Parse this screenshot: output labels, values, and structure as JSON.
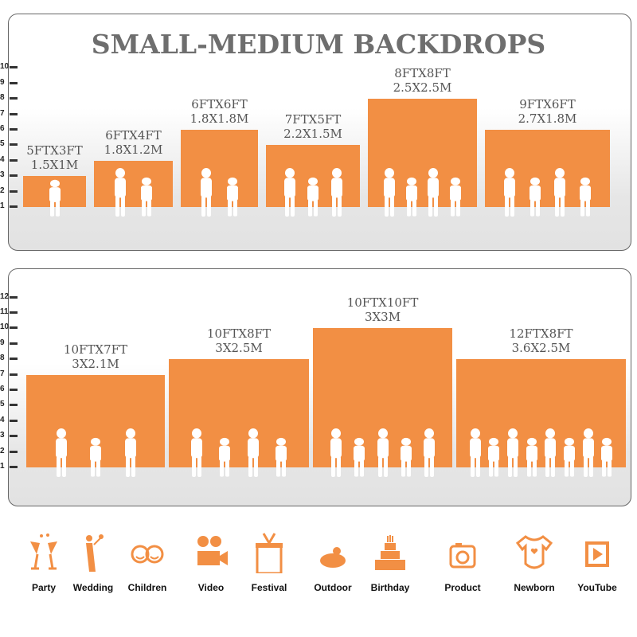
{
  "title": "SMALL-MEDIUM BACKDROPS",
  "accent_color": "#f28f44",
  "panel1": {
    "axis_ticks": [
      "1",
      "2",
      "3",
      "4",
      "5",
      "6",
      "7",
      "8",
      "9",
      "10"
    ],
    "items": [
      {
        "ft": "5FTX3FT",
        "m": "1.5X1M",
        "height_ft": 3,
        "people": 1
      },
      {
        "ft": "6FTX4FT",
        "m": "1.8X1.2M",
        "height_ft": 4,
        "people": 2
      },
      {
        "ft": "6FTX6FT",
        "m": "1.8X1.8M",
        "height_ft": 6,
        "people": 2
      },
      {
        "ft": "7FTX5FT",
        "m": "2.2X1.5M",
        "height_ft": 5,
        "people": 3
      },
      {
        "ft": "8FTX8FT",
        "m": "2.5X2.5M",
        "height_ft": 8,
        "people": 4
      },
      {
        "ft": "9FTX6FT",
        "m": "2.7X1.8M",
        "height_ft": 6,
        "people": 4
      }
    ]
  },
  "panel2": {
    "axis_ticks": [
      "1",
      "2",
      "3",
      "4",
      "5",
      "6",
      "7",
      "8",
      "9",
      "10",
      "11",
      "12"
    ],
    "items": [
      {
        "ft": "10FTX7FT",
        "m": "3X2.1M",
        "height_ft": 7,
        "people": 3
      },
      {
        "ft": "10FTX8FT",
        "m": "3X2.5M",
        "height_ft": 8,
        "people": 4
      },
      {
        "ft": "10FTX10FT",
        "m": "3X3M",
        "height_ft": 10,
        "people": 5
      },
      {
        "ft": "12FTX8FT",
        "m": "3.6X2.5M",
        "height_ft": 8,
        "people": 8
      }
    ]
  },
  "uses": [
    {
      "label": "Party",
      "icon": "champagne-glasses-icon"
    },
    {
      "label": "Wedding",
      "icon": "wedding-couple-icon"
    },
    {
      "label": "Children",
      "icon": "children-faces-icon"
    },
    {
      "label": "Video",
      "icon": "video-camera-icon"
    },
    {
      "label": "Festival",
      "icon": "gift-box-icon"
    },
    {
      "label": "Outdoor",
      "icon": "cloud-icon"
    },
    {
      "label": "Birthday",
      "icon": "birthday-cake-icon"
    },
    {
      "label": "Product",
      "icon": "camera-icon"
    },
    {
      "label": "Newborn",
      "icon": "baby-onesie-icon"
    },
    {
      "label": "YouTube",
      "icon": "play-button-icon"
    }
  ]
}
